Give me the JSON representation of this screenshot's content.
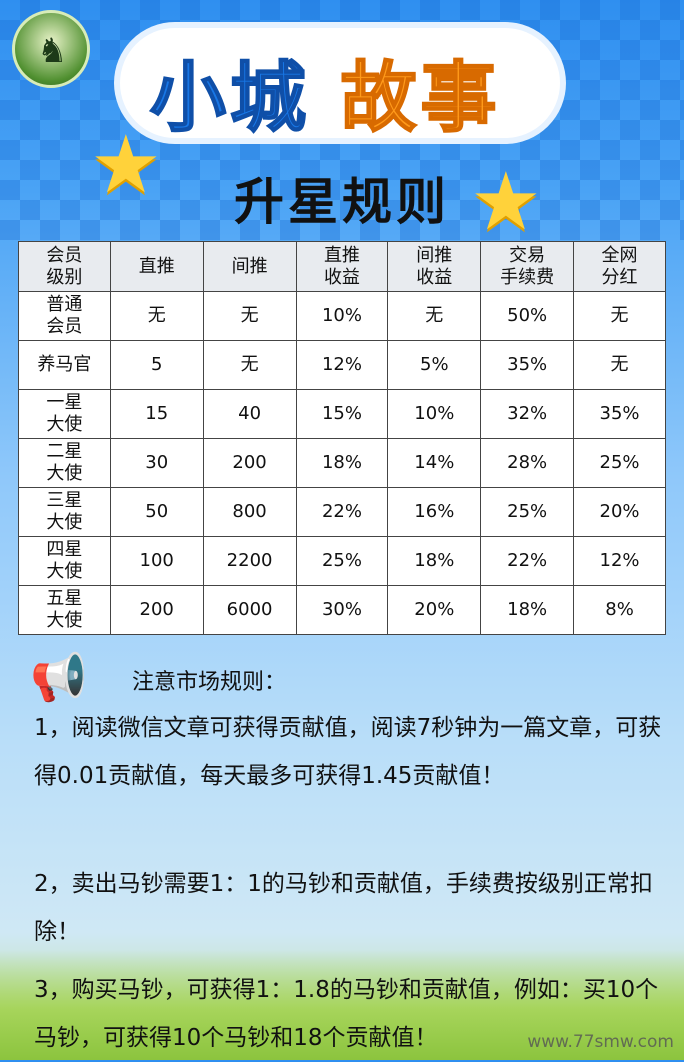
{
  "header": {
    "title_part1": "小城",
    "title_part2": "故事",
    "subtitle": "升星规则"
  },
  "logo": {
    "icon": "horse-logo"
  },
  "table": {
    "columns": [
      "会员\n级别",
      "直推",
      "间推",
      "直推\n收益",
      "间推\n收益",
      "交易\n手续费",
      "全网\n分红"
    ],
    "rows": [
      [
        "普通\n会员",
        "无",
        "无",
        "10%",
        "无",
        "50%",
        "无"
      ],
      [
        "养马官",
        "5",
        "无",
        "12%",
        "5%",
        "35%",
        "无"
      ],
      [
        "一星\n大使",
        "15",
        "40",
        "15%",
        "10%",
        "32%",
        "35%"
      ],
      [
        "二星\n大使",
        "30",
        "200",
        "18%",
        "14%",
        "28%",
        "25%"
      ],
      [
        "三星\n大使",
        "50",
        "800",
        "22%",
        "16%",
        "25%",
        "20%"
      ],
      [
        "四星\n大使",
        "100",
        "2200",
        "25%",
        "18%",
        "22%",
        "12%"
      ],
      [
        "五星\n大使",
        "200",
        "6000",
        "30%",
        "20%",
        "18%",
        "8%"
      ]
    ]
  },
  "notice": {
    "title": "注意市场规则：",
    "rules": [
      "1，阅读微信文章可获得贡献值，阅读7秒钟为一篇文章，可获得0.01贡献值，每天最多可获得1.45贡献值！",
      "2，卖出马钞需要1：1的马钞和贡献值，手续费按级别正常扣除！",
      "3，购买马钞，可获得1：1.8的马钞和贡献值，例如：买10个马钞，可获得10个马钞和18个贡献值！"
    ]
  },
  "watermark": "www.77smw.com",
  "colors": {
    "title_blue": "#1877e6",
    "title_orange": "#ff9a1a",
    "header_bg": "#e8ebef"
  }
}
